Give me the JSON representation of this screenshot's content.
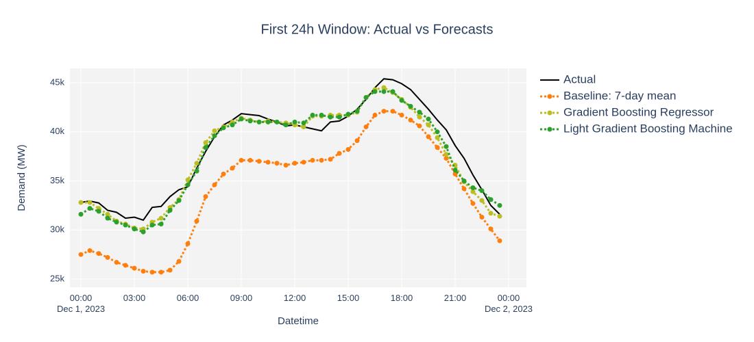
{
  "chart_data": {
    "type": "line",
    "title": "First 24h Window: Actual vs Forecasts",
    "x_label": "Datetime",
    "y_label": "Demand (MW)",
    "x": [
      "2023-12-01 00:00",
      "2023-12-01 00:30",
      "2023-12-01 01:00",
      "2023-12-01 01:30",
      "2023-12-01 02:00",
      "2023-12-01 02:30",
      "2023-12-01 03:00",
      "2023-12-01 03:30",
      "2023-12-01 04:00",
      "2023-12-01 04:30",
      "2023-12-01 05:00",
      "2023-12-01 05:30",
      "2023-12-01 06:00",
      "2023-12-01 06:30",
      "2023-12-01 07:00",
      "2023-12-01 07:30",
      "2023-12-01 08:00",
      "2023-12-01 08:30",
      "2023-12-01 09:00",
      "2023-12-01 09:30",
      "2023-12-01 10:00",
      "2023-12-01 10:30",
      "2023-12-01 11:00",
      "2023-12-01 11:30",
      "2023-12-01 12:00",
      "2023-12-01 12:30",
      "2023-12-01 13:00",
      "2023-12-01 13:30",
      "2023-12-01 14:00",
      "2023-12-01 14:30",
      "2023-12-01 15:00",
      "2023-12-01 15:30",
      "2023-12-01 16:00",
      "2023-12-01 16:30",
      "2023-12-01 17:00",
      "2023-12-01 17:30",
      "2023-12-01 18:00",
      "2023-12-01 18:30",
      "2023-12-01 19:00",
      "2023-12-01 19:30",
      "2023-12-01 20:00",
      "2023-12-01 20:30",
      "2023-12-01 21:00",
      "2023-12-01 21:30",
      "2023-12-01 22:00",
      "2023-12-01 22:30",
      "2023-12-01 23:00",
      "2023-12-01 23:30"
    ],
    "series": [
      {
        "name": "Actual",
        "color": "#000000",
        "dash": "solid",
        "markers": false,
        "values": [
          32800,
          32950,
          32750,
          32000,
          31800,
          31200,
          31300,
          31000,
          32300,
          32400,
          33400,
          34100,
          34400,
          36300,
          38000,
          39500,
          40700,
          41200,
          41850,
          41750,
          41650,
          41300,
          41000,
          40600,
          40700,
          40500,
          40300,
          40100,
          41000,
          41100,
          41600,
          42300,
          43300,
          44500,
          45400,
          45300,
          44900,
          44300,
          43300,
          42300,
          41200,
          40200,
          38600,
          37300,
          35600,
          34100,
          32500,
          31600
        ]
      },
      {
        "name": "Baseline: 7-day mean",
        "color": "#ff7f0e",
        "dash": "dot",
        "markers": true,
        "values": [
          27500,
          27900,
          27600,
          27200,
          26700,
          26400,
          26100,
          25800,
          25700,
          25700,
          25900,
          26800,
          28600,
          30900,
          33400,
          34600,
          35700,
          36300,
          37100,
          37100,
          37000,
          36900,
          36800,
          36600,
          36800,
          36900,
          37100,
          37100,
          37200,
          37800,
          38200,
          39100,
          40500,
          41700,
          42100,
          42100,
          41700,
          41200,
          40600,
          39500,
          38400,
          37300,
          35700,
          34200,
          32700,
          31300,
          30100,
          28900
        ]
      },
      {
        "name": "Gradient Boosting Regressor",
        "color": "#bcbd22",
        "dash": "dot",
        "markers": true,
        "values": [
          32800,
          32800,
          32200,
          31600,
          30900,
          30600,
          30200,
          30100,
          30800,
          31200,
          32300,
          33100,
          35100,
          36800,
          38900,
          40100,
          40500,
          41000,
          41400,
          41200,
          41000,
          41100,
          41000,
          40900,
          40700,
          40500,
          41600,
          41600,
          41700,
          41700,
          41700,
          42000,
          43500,
          44300,
          44500,
          44000,
          43300,
          42500,
          41500,
          40700,
          39400,
          37700,
          36600,
          34900,
          33900,
          33000,
          31700,
          31400
        ]
      },
      {
        "name": "Light Gradient Boosting Machine",
        "color": "#2ca02c",
        "dash": "dot",
        "markers": true,
        "values": [
          31600,
          32200,
          31900,
          31200,
          30800,
          30500,
          30100,
          29800,
          30500,
          30600,
          32000,
          33000,
          34600,
          36000,
          38400,
          39600,
          40400,
          40700,
          41300,
          41100,
          41000,
          41000,
          41000,
          40700,
          41000,
          40900,
          41700,
          41700,
          41500,
          41500,
          41800,
          42100,
          43500,
          44100,
          44100,
          44100,
          43200,
          42600,
          42000,
          41300,
          40000,
          38500,
          36100,
          35000,
          34300,
          34000,
          33100,
          32500
        ]
      }
    ],
    "xlim": [
      "2023-11-30 23:23",
      "2023-12-02 01:00"
    ],
    "xticks": [
      {
        "value": "2023-12-01 00:00",
        "label": "00:00\nDec 1, 2023"
      },
      {
        "value": "2023-12-01 03:00",
        "label": "03:00"
      },
      {
        "value": "2023-12-01 06:00",
        "label": "06:00"
      },
      {
        "value": "2023-12-01 09:00",
        "label": "09:00"
      },
      {
        "value": "2023-12-01 12:00",
        "label": "12:00"
      },
      {
        "value": "2023-12-01 15:00",
        "label": "15:00"
      },
      {
        "value": "2023-12-01 18:00",
        "label": "18:00"
      },
      {
        "value": "2023-12-01 21:00",
        "label": "21:00"
      },
      {
        "value": "2023-12-02 00:00",
        "label": "00:00\nDec 2, 2023"
      }
    ],
    "ylim": [
      24160,
      46460
    ],
    "yticks": [
      {
        "value": 25000,
        "label": "25k"
      },
      {
        "value": 30000,
        "label": "30k"
      },
      {
        "value": 35000,
        "label": "35k"
      },
      {
        "value": 40000,
        "label": "40k"
      },
      {
        "value": 45000,
        "label": "45k"
      }
    ],
    "grid": true,
    "legend": "right"
  }
}
